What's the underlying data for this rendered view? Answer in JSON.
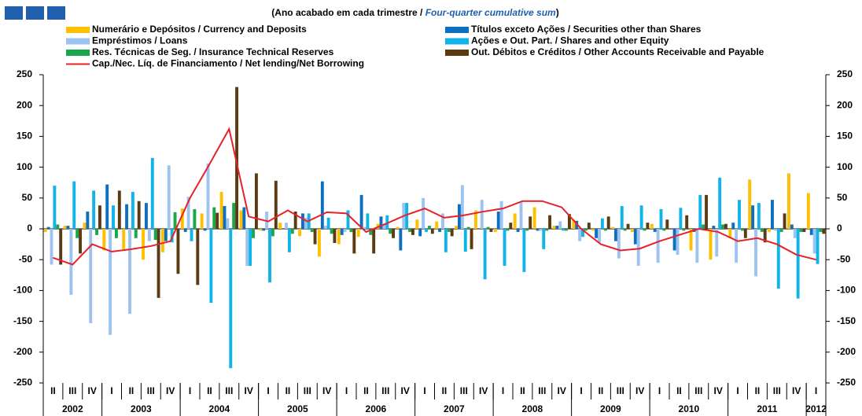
{
  "chart_data": {
    "type": "bar",
    "title_parts": [
      "(Ano acabado em cada trimestre / ",
      "Four-quarter cumulative sum",
      ")"
    ],
    "categories": [
      "II",
      "III",
      "IV",
      "I",
      "II",
      "III",
      "IV",
      "I",
      "II",
      "III",
      "IV",
      "I",
      "II",
      "III",
      "IV",
      "I",
      "II",
      "III",
      "IV",
      "I",
      "II",
      "III",
      "IV",
      "I",
      "II",
      "III",
      "IV",
      "I",
      "II",
      "III",
      "IV",
      "I",
      "II",
      "III",
      "IV",
      "I",
      "II",
      "III",
      "IV",
      "I"
    ],
    "years": [
      "2002",
      "2003",
      "2004",
      "2005",
      "2006",
      "2007",
      "2008",
      "2009",
      "2010",
      "2011",
      "2012"
    ],
    "ylim": [
      -250,
      250
    ],
    "yticks": [
      -250,
      -200,
      -150,
      -100,
      -50,
      0,
      50,
      100,
      150,
      200,
      250
    ],
    "y2lim": [
      -250,
      250
    ],
    "y2ticks": [
      -250,
      -200,
      -150,
      -100,
      -50,
      0,
      50,
      100,
      150,
      200,
      250
    ],
    "series": [
      {
        "name": "Numerário e Depósitos / Currency and Deposits",
        "type": "bar",
        "color": "#ffc000",
        "values": [
          -5,
          5,
          10,
          -35,
          -33,
          -50,
          -38,
          33,
          25,
          60,
          30,
          -3,
          10,
          -12,
          -45,
          -25,
          -13,
          8,
          3,
          15,
          12,
          5,
          30,
          -5,
          25,
          35,
          5,
          15,
          -3,
          3,
          -5,
          8,
          0,
          -35,
          -50,
          -15,
          80,
          -5,
          90,
          58
        ]
      },
      {
        "name": "Títulos exceto Ações / Securities other than Shares",
        "type": "bar",
        "color": "#0d6fbf",
        "values": [
          3,
          5,
          28,
          72,
          40,
          42,
          -20,
          -5,
          -3,
          37,
          35,
          -3,
          0,
          25,
          77,
          -10,
          55,
          20,
          -35,
          -12,
          -5,
          40,
          0,
          28,
          -5,
          -3,
          5,
          13,
          -15,
          -20,
          -25,
          -5,
          -35,
          -5,
          5,
          10,
          38,
          47,
          7,
          -10
        ]
      },
      {
        "name": "Empréstimos / Loans",
        "type": "bar",
        "color": "#9dc3f0",
        "values": [
          -58,
          -107,
          -153,
          -172,
          -138,
          -20,
          103,
          52,
          106,
          17,
          -60,
          28,
          10,
          18,
          5,
          -5,
          3,
          8,
          42,
          50,
          25,
          71,
          47,
          45,
          45,
          -3,
          12,
          -20,
          -22,
          -48,
          -60,
          -55,
          -42,
          -55,
          -45,
          -55,
          -77,
          -3,
          -15,
          -40
        ]
      },
      {
        "name": "Ações e Out. Part. / Shares and other Equity",
        "type": "bar",
        "color": "#10b4e8",
        "values": [
          70,
          77,
          62,
          38,
          60,
          115,
          -22,
          -20,
          -120,
          -226,
          -60,
          -87,
          -38,
          25,
          18,
          30,
          25,
          22,
          42,
          -5,
          -38,
          -37,
          -82,
          -60,
          -70,
          -33,
          -3,
          -13,
          17,
          37,
          38,
          32,
          34,
          55,
          83,
          47,
          42,
          -97,
          -113,
          -57
        ]
      },
      {
        "name": "Res. Técnicas de Seg. / Insurance Technical Reserves",
        "type": "bar",
        "color": "#1aa64a",
        "values": [
          7,
          -15,
          -10,
          -15,
          -15,
          -18,
          27,
          32,
          35,
          42,
          -15,
          -12,
          -8,
          -5,
          -8,
          -5,
          -10,
          -8,
          -5,
          5,
          -5,
          3,
          3,
          -3,
          -3,
          -3,
          -3,
          -3,
          -3,
          -3,
          -3,
          -3,
          -3,
          7,
          7,
          -3,
          -5,
          -5,
          -5,
          -5
        ]
      },
      {
        "name": "Out. Débitos e Créditos / Other Accounts Receivable and Payable",
        "type": "bar",
        "color": "#5c3a12",
        "values": [
          -58,
          -40,
          38,
          62,
          45,
          -112,
          -73,
          -91,
          26,
          230,
          90,
          78,
          28,
          -25,
          -23,
          -40,
          -40,
          -15,
          -10,
          -8,
          -12,
          -33,
          -5,
          10,
          20,
          22,
          24,
          10,
          20,
          8,
          10,
          15,
          22,
          55,
          8,
          -15,
          -22,
          25,
          -5,
          -8
        ]
      },
      {
        "name": "Cap./Nec. Líq. de Financiamento / Net lending/Net Borrowing",
        "type": "line",
        "color": "#e8202a",
        "values": [
          -47,
          -58,
          -25,
          -37,
          -33,
          -28,
          -20,
          50,
          105,
          162,
          20,
          12,
          30,
          12,
          27,
          25,
          -5,
          8,
          22,
          33,
          18,
          22,
          28,
          33,
          45,
          45,
          35,
          0,
          -25,
          -35,
          -32,
          -20,
          -10,
          0,
          -5,
          -20,
          -15,
          -25,
          -42,
          -50
        ]
      }
    ]
  }
}
